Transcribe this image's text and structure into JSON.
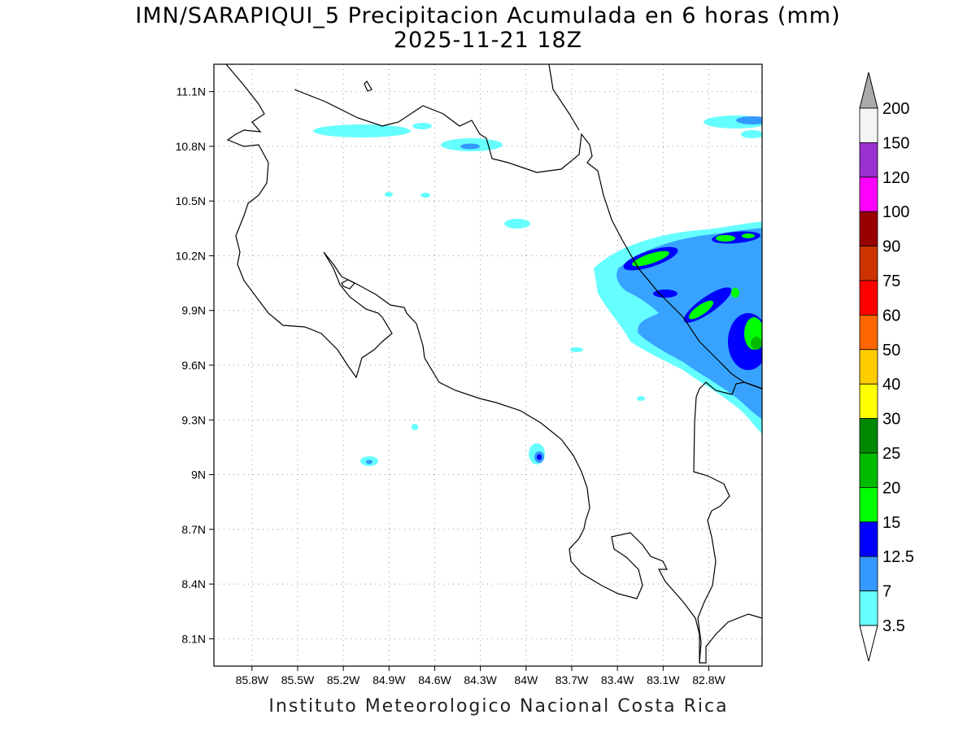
{
  "title_line1": "IMN/SARAPIQUI_5 Precipitacion Acumulada en 6 horas (mm)",
  "title_line2": "2025-11-21 18Z",
  "footer": "Instituto Meteorologico Nacional Costa Rica",
  "map": {
    "lon_range": [
      -86.05,
      -82.45
    ],
    "lat_range": [
      7.95,
      11.25
    ],
    "lon_ticks": [
      "85.8W",
      "85.5W",
      "85.2W",
      "84.9W",
      "84.6W",
      "84.3W",
      "84W",
      "83.7W",
      "83.4W",
      "83.1W",
      "82.8W"
    ],
    "lon_tick_values": [
      -85.8,
      -85.5,
      -85.2,
      -84.9,
      -84.6,
      -84.3,
      -84.0,
      -83.7,
      -83.4,
      -83.1,
      -82.8
    ],
    "lat_ticks": [
      "11.1N",
      "10.8N",
      "10.5N",
      "10.2N",
      "9.9N",
      "9.6N",
      "9.3N",
      "9N",
      "8.7N",
      "8.4N",
      "8.1N"
    ],
    "lat_tick_values": [
      11.1,
      10.8,
      10.5,
      10.2,
      9.9,
      9.6,
      9.3,
      9.0,
      8.7,
      8.4,
      8.1
    ],
    "grid": "dotted"
  },
  "colorbar": {
    "labels": [
      "200",
      "150",
      "120",
      "100",
      "90",
      "75",
      "60",
      "50",
      "40",
      "30",
      "25",
      "20",
      "15",
      "12.5",
      "7",
      "3.5"
    ],
    "colors": [
      "#f4f4f4",
      "#9b30d0",
      "#ff00ff",
      "#990000",
      "#cc3300",
      "#ff0000",
      "#ff6600",
      "#ffcc00",
      "#ffff00",
      "#008800",
      "#00bb00",
      "#00ff00",
      "#0000ff",
      "#3399ff",
      "#66ffff"
    ],
    "arrow_top_color": "#aaaaaa",
    "arrow_bottom_color": "#ffffff"
  },
  "precip_colors": {
    "c3_5": "#66ffff",
    "c7": "#3399ff",
    "c12_5": "#0000ff",
    "c15": "#00ff00",
    "c20": "#00bb00",
    "c25": "#008800"
  }
}
